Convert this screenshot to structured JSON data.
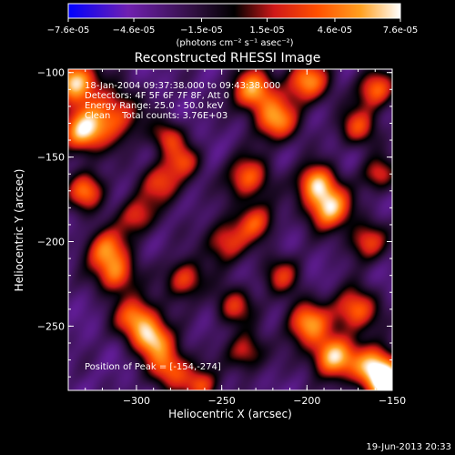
{
  "chart_data": {
    "type": "heatmap",
    "title": "Reconstructed RHESSI Image",
    "xlabel": "Heliocentric X (arcsec)",
    "ylabel": "Heliocentric Y (arcsec)",
    "xlim": [
      -340,
      -150
    ],
    "ylim": [
      -288,
      -98
    ],
    "x_ticks": [
      "-300",
      "-250",
      "-200",
      "-150"
    ],
    "x_tick_values": [
      -300,
      -250,
      -200,
      -150
    ],
    "y_ticks": [
      "-100",
      "-150",
      "-200",
      "-250"
    ],
    "y_tick_values": [
      -100,
      -150,
      -200,
      -250
    ],
    "colorbar": {
      "ticks": [
        "-7.6e-05",
        "-4.6e-05",
        "-1.5e-05",
        "1.5e-05",
        "4.6e-05",
        "7.6e-05"
      ],
      "tick_values": [
        -7.6e-05,
        -4.6e-05,
        -1.5e-05,
        1.5e-05,
        4.6e-05,
        7.6e-05
      ],
      "range": [
        -7.6e-05,
        7.6e-05
      ],
      "unit_label": "(photons cm⁻² s⁻¹ asec⁻²)",
      "colors": [
        "#0000ff",
        "#7020b0",
        "#301040",
        "#000000",
        "#d01818",
        "#ff5000",
        "#ffa020",
        "#ffffff"
      ]
    },
    "annotations": {
      "line1": "18-Jan-2004 09:37:38.000 to 09:43:38.000",
      "line2": "Detectors: 4F 5F 6F 7F 8F, Att 0",
      "line3": "Energy Range: 25.0 - 50.0 keV",
      "line4": "Clean    Total counts: 3.76E+03",
      "peak": "Position of Peak = [-154,-274]"
    },
    "peak_position": [
      -154,
      -274
    ],
    "sources": [
      {
        "x": -336,
        "y": -105,
        "a": 1.0,
        "s": 9
      },
      {
        "x": -332,
        "y": -135,
        "a": 0.9,
        "s": 9
      },
      {
        "x": -314,
        "y": -125,
        "a": 0.7,
        "s": 11
      },
      {
        "x": -330,
        "y": -170,
        "a": 0.7,
        "s": 8
      },
      {
        "x": -318,
        "y": -205,
        "a": 0.75,
        "s": 9
      },
      {
        "x": -312,
        "y": -220,
        "a": 0.65,
        "s": 8
      },
      {
        "x": -300,
        "y": -185,
        "a": 0.55,
        "s": 8
      },
      {
        "x": -285,
        "y": -165,
        "a": 0.6,
        "s": 9
      },
      {
        "x": -282,
        "y": -138,
        "a": 0.55,
        "s": 7
      },
      {
        "x": -272,
        "y": -152,
        "a": 0.5,
        "s": 7
      },
      {
        "x": -300,
        "y": -245,
        "a": 0.8,
        "s": 9
      },
      {
        "x": -290,
        "y": -258,
        "a": 0.8,
        "s": 8
      },
      {
        "x": -280,
        "y": -275,
        "a": 0.7,
        "s": 9
      },
      {
        "x": -262,
        "y": -285,
        "a": 0.6,
        "s": 7
      },
      {
        "x": -272,
        "y": -222,
        "a": 0.65,
        "s": 8
      },
      {
        "x": -248,
        "y": -200,
        "a": 0.6,
        "s": 9
      },
      {
        "x": -243,
        "y": -238,
        "a": 0.55,
        "s": 8
      },
      {
        "x": -236,
        "y": -265,
        "a": 0.55,
        "s": 8
      },
      {
        "x": -232,
        "y": -110,
        "a": 0.85,
        "s": 9
      },
      {
        "x": -218,
        "y": -128,
        "a": 0.8,
        "s": 9
      },
      {
        "x": -235,
        "y": -162,
        "a": 0.7,
        "s": 9
      },
      {
        "x": -230,
        "y": -188,
        "a": 0.6,
        "s": 8
      },
      {
        "x": -200,
        "y": -105,
        "a": 0.8,
        "s": 9
      },
      {
        "x": -195,
        "y": -165,
        "a": 0.85,
        "s": 8
      },
      {
        "x": -187,
        "y": -180,
        "a": 0.95,
        "s": 9
      },
      {
        "x": -170,
        "y": -132,
        "a": 0.6,
        "s": 8
      },
      {
        "x": -160,
        "y": -110,
        "a": 0.7,
        "s": 8
      },
      {
        "x": -165,
        "y": -200,
        "a": 0.6,
        "s": 8
      },
      {
        "x": -158,
        "y": -160,
        "a": 0.55,
        "s": 7
      },
      {
        "x": -200,
        "y": -248,
        "a": 0.8,
        "s": 9
      },
      {
        "x": -185,
        "y": -268,
        "a": 0.95,
        "s": 9
      },
      {
        "x": -160,
        "y": -274,
        "a": 1.0,
        "s": 9
      },
      {
        "x": -152,
        "y": -285,
        "a": 0.9,
        "s": 8
      },
      {
        "x": -172,
        "y": -240,
        "a": 0.75,
        "s": 9
      },
      {
        "x": -215,
        "y": -220,
        "a": 0.5,
        "s": 8
      }
    ]
  },
  "timestamp": "19-Jun-2013 20:33"
}
